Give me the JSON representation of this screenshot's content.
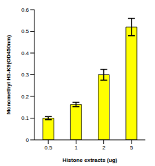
{
  "chart_data": {
    "type": "bar",
    "x_label": "Histone extracts (ug)",
    "y_label": "Monomethyl H3-K9(OD450nm)",
    "categories": [
      "0.5",
      "1",
      "2",
      "5"
    ],
    "values": [
      0.1,
      0.163,
      0.3,
      0.52
    ],
    "errors": [
      0.007,
      0.01,
      0.025,
      0.04
    ],
    "color": "#ffff00",
    "ylim": [
      0,
      0.6
    ],
    "yticks": [
      0,
      0.1,
      0.2,
      0.3,
      0.4,
      0.5,
      0.6
    ],
    "grid": false
  }
}
